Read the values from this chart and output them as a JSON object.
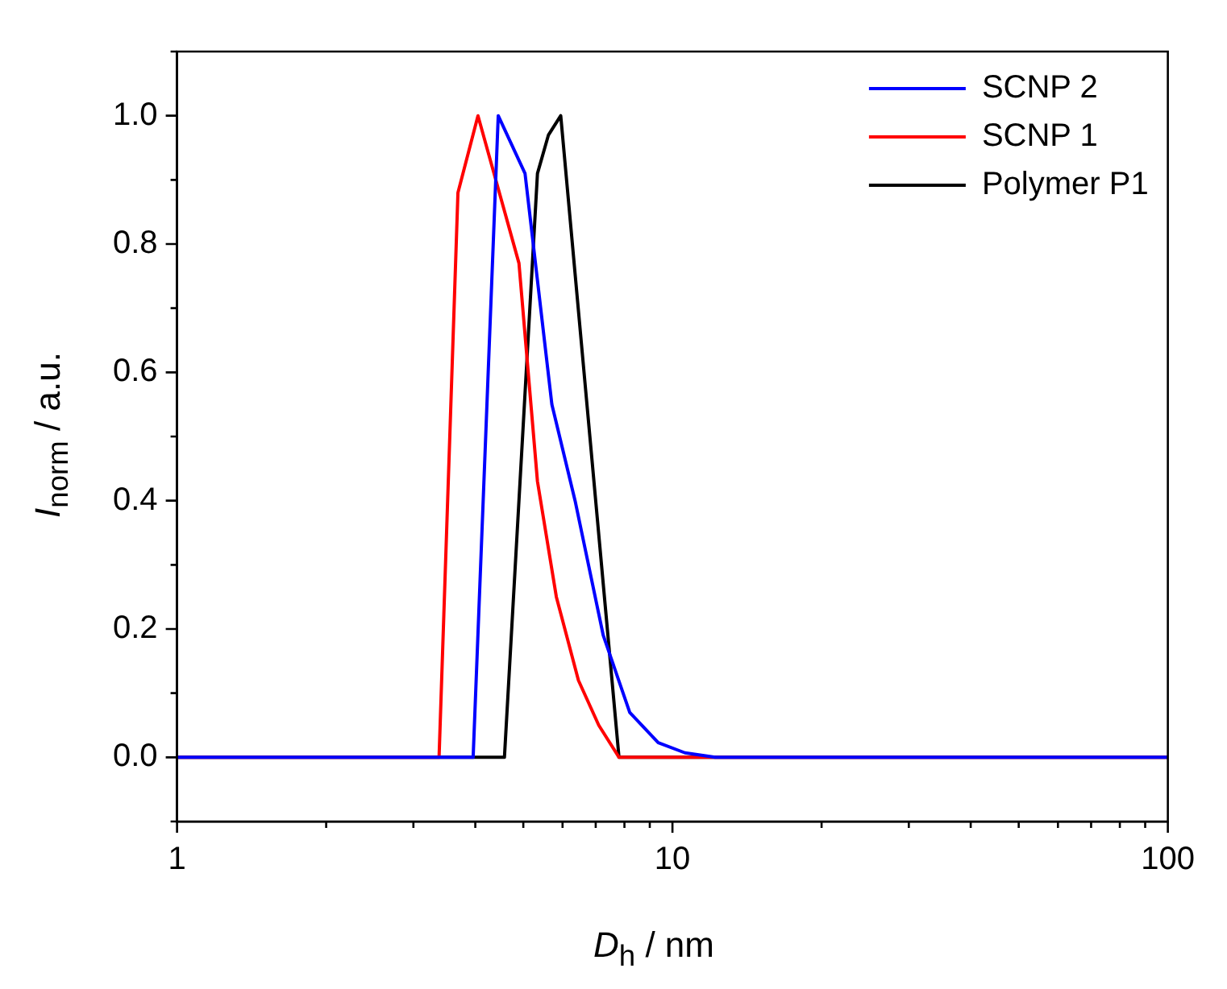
{
  "chart_data": {
    "type": "line",
    "xlabel": "D$_{h}$ / nm",
    "ylabel": "I$_{norm}$ / a.u.",
    "log": "x",
    "grid": false,
    "legend": "top right",
    "marker": "none",
    "line_style": "solid",
    "xlim": [
      1,
      100
    ],
    "xticks": [
      1,
      {
        "value": 2,
        "label": null
      },
      {
        "value": 3,
        "label": null
      },
      {
        "value": 4,
        "label": null
      },
      {
        "value": 5,
        "label": null
      },
      {
        "value": 6,
        "label": null
      },
      {
        "value": 7,
        "label": null
      },
      {
        "value": 8,
        "label": null
      },
      {
        "value": 9,
        "label": null
      },
      10,
      {
        "value": 20,
        "label": null
      },
      {
        "value": 30,
        "label": null
      },
      {
        "value": 40,
        "label": null
      },
      {
        "value": 50,
        "label": null
      },
      {
        "value": 60,
        "label": null
      },
      {
        "value": 70,
        "label": null
      },
      {
        "value": 80,
        "label": null
      },
      {
        "value": 90,
        "label": null
      },
      100
    ],
    "ylim": [
      -0.1,
      1.1
    ],
    "yticks": [
      {
        "value": -0.1,
        "label": null
      },
      {
        "value": 0,
        "label": "0.0"
      },
      {
        "value": 0.1,
        "label": null
      },
      {
        "value": 0.2,
        "label": "0.2"
      },
      {
        "value": 0.3,
        "label": null
      },
      {
        "value": 0.4,
        "label": "0.4"
      },
      {
        "value": 0.5,
        "label": null
      },
      {
        "value": 0.6,
        "label": "0.6"
      },
      {
        "value": 0.7,
        "label": null
      },
      {
        "value": 0.8,
        "label": "0.8"
      },
      {
        "value": 0.9,
        "label": null
      },
      {
        "value": 1.0,
        "label": "1.0"
      },
      {
        "value": 1.1,
        "label": null
      }
    ],
    "series": [
      {
        "name": "SCNP 2",
        "color": "#0000ff",
        "x": [
          1,
          3.96,
          4.45,
          5.04,
          5.71,
          6.36,
          7.25,
          8.2,
          9.36,
          10.6,
          12.2,
          100
        ],
        "values": [
          0,
          0,
          1.0,
          0.91,
          0.55,
          0.4,
          0.19,
          0.07,
          0.023,
          0.007,
          0,
          0
        ]
      },
      {
        "name": "SCNP 1",
        "color": "#ff0000",
        "x": [
          1,
          3.38,
          3.69,
          4.05,
          4.9,
          5.34,
          5.83,
          6.46,
          7.1,
          7.8,
          100
        ],
        "values": [
          0,
          0,
          0.88,
          1.0,
          0.77,
          0.43,
          0.25,
          0.12,
          0.05,
          0,
          0
        ]
      },
      {
        "name": "Polymer P1",
        "color": "#000000",
        "x": [
          1,
          4.58,
          5.34,
          5.62,
          5.95,
          7.8,
          100
        ],
        "values": [
          0,
          0,
          0.91,
          0.97,
          1.0,
          0,
          0
        ]
      }
    ]
  }
}
